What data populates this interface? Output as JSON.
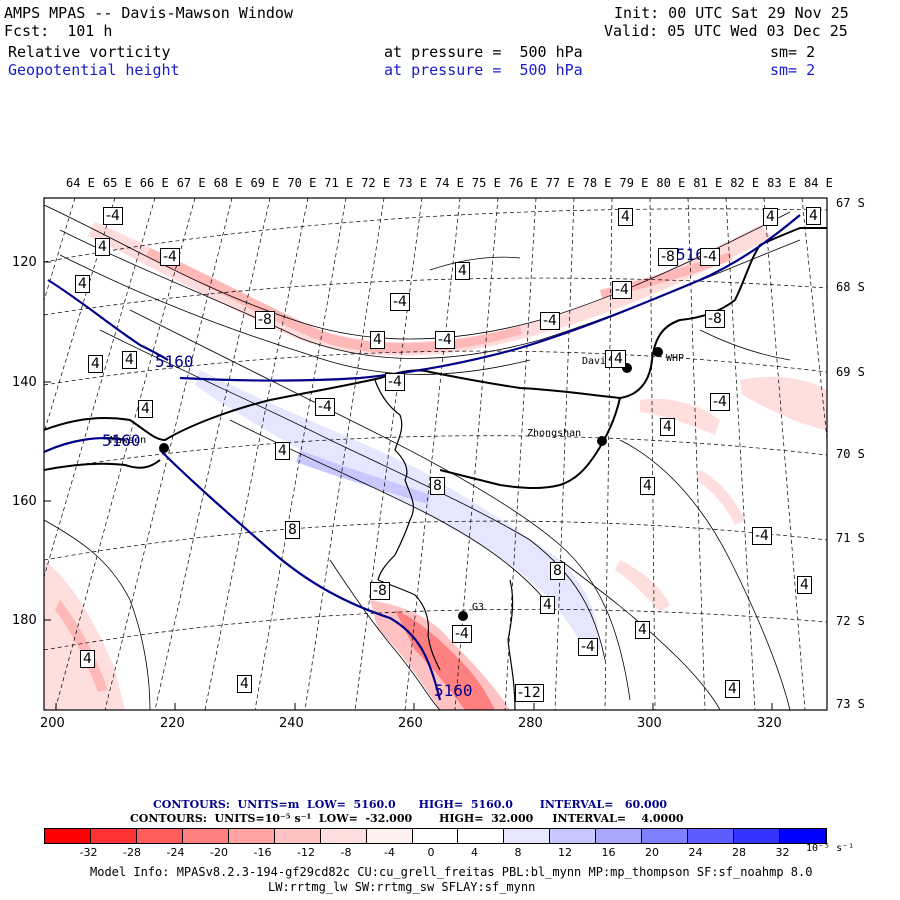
{
  "header": {
    "title": "AMPS MPAS -- Davis-Mawson Window",
    "forecast": "Fcst:  101 h",
    "init": "Init: 00 UTC Sat 29 Nov 25",
    "valid": "Valid: 05 UTC Wed 03 Dec 25",
    "field1_name": "Relative vorticity",
    "field1_level": "at pressure =  500 hPa",
    "field1_sm": "sm= 2",
    "field2_name": "Geopotential height",
    "field2_level": "at pressure =  500 hPa",
    "field2_sm": "sm= 2"
  },
  "map": {
    "lon_labels": [
      "64 E",
      "65 E",
      "66 E",
      "67 E",
      "68 E",
      "69 E",
      "70 E",
      "71 E",
      "72 E",
      "73 E",
      "74 E",
      "75 E",
      "76 E",
      "77 E",
      "78 E",
      "79 E",
      "80 E",
      "81 E",
      "82 E",
      "83 E",
      "84 E"
    ],
    "lat_labels": [
      "67 S",
      "68 S",
      "69 S",
      "70 S",
      "71 S",
      "72 S",
      "73 S"
    ],
    "x_ticks": [
      "200",
      "220",
      "240",
      "260",
      "280",
      "300",
      "320"
    ],
    "y_ticks": [
      "120",
      "140",
      "160",
      "180"
    ],
    "stations": [
      {
        "name": "Davis"
      },
      {
        "name": "WHP"
      },
      {
        "name": "Zhongshan"
      },
      {
        "name": "Mawson"
      },
      {
        "name": "G3"
      }
    ],
    "height_labels": [
      "5160",
      "5160",
      "5160",
      "5160"
    ],
    "vort_labels": [
      "-4",
      "4",
      "4",
      "-4",
      "4",
      "4",
      "4",
      "-4",
      "-8",
      "-4",
      "-8",
      "-4",
      "4",
      "-4",
      "-4",
      "-8",
      "4",
      "4",
      "4",
      "4",
      "-4",
      "-4",
      "-4",
      "4",
      "4",
      "8",
      "4",
      "8",
      "8",
      "4",
      "-4",
      "-8",
      "-4",
      "4",
      "4",
      "4",
      "4",
      "-12",
      "4",
      "-4",
      "4",
      "4"
    ]
  },
  "footer": {
    "contours1": "CONTOURS:  UNITS=m  LOW=  5160.0      HIGH=  5160.0       INTERVAL=   60.000",
    "contours2": "CONTOURS:  UNITS=10⁻⁵ s⁻¹  LOW=  -32.000       HIGH=  32.000     INTERVAL=    4.0000",
    "colorbar_ticks": [
      "-32",
      "-28",
      "-24",
      "-20",
      "-16",
      "-12",
      "-8",
      "-4",
      "0",
      "4",
      "8",
      "12",
      "16",
      "20",
      "24",
      "28",
      "32"
    ],
    "colorbar_unit": "10⁻⁵ s⁻¹",
    "colorbar_colors": [
      "#ff0000",
      "#ff3333",
      "#ff5c5c",
      "#ff8080",
      "#ffa3a3",
      "#ffc2c2",
      "#ffdede",
      "#fff0f0",
      "#ffffff",
      "#ffffff",
      "#e6e6ff",
      "#c8c8ff",
      "#a8a8ff",
      "#8080ff",
      "#5c5cff",
      "#3333ff",
      "#0000ff"
    ],
    "model_info": "Model Info: MPASv8.2.3-194-gf29cd82c CU:cu_grell_freitas PBL:bl_mynn MP:mp_thompson SF:sf_noahmp 8.0",
    "model_info2": "LW:rrtmg_lw SW:rrtmg_sw SFLAY:sf_mynn"
  },
  "colors": {
    "height_contour": "#00008b",
    "header_blue": "#1a1acc"
  }
}
